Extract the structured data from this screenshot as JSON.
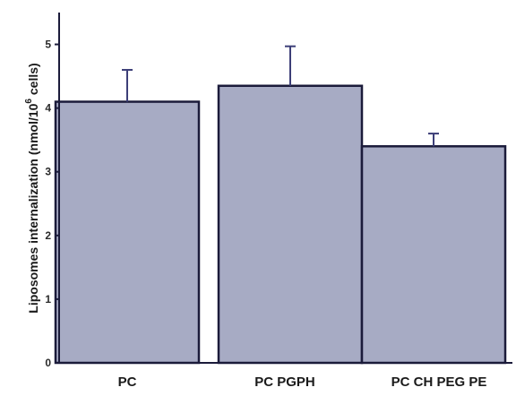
{
  "chart_data": {
    "type": "bar",
    "categories": [
      "PC",
      "PC PGPH",
      "PC CH PEG PE"
    ],
    "values": [
      4.1,
      4.35,
      3.4
    ],
    "errors": [
      0.5,
      0.62,
      0.2
    ],
    "ylim": [
      0,
      5.5
    ],
    "yticks": [
      "0",
      "1",
      "2",
      "3",
      "4",
      "5"
    ],
    "xlabel": "",
    "ylabel": "Liposomes internalization (nmol/10",
    "ylabel_superscript": "6",
    "ylabel_suffix": " cells)",
    "grid": false,
    "bar_fill": "#a7abc4",
    "bar_stroke": "#1b1b3a",
    "error_color": "#3d3f78",
    "axis_color": "#1b1b3a"
  }
}
